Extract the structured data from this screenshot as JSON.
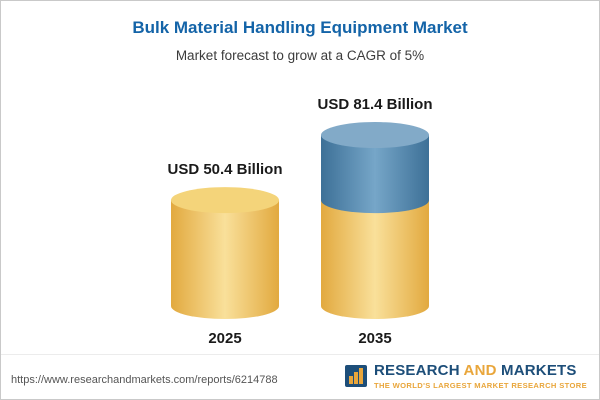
{
  "header": {
    "title": "Bulk Material Handling Equipment Market",
    "subtitle": "Market forecast to grow at a CAGR of 5%"
  },
  "chart_data": {
    "type": "bar",
    "variant": "3d-cylinder",
    "title": "Bulk Material Handling Equipment Market",
    "subtitle": "Market forecast to grow at a CAGR of 5%",
    "cagr": "5%",
    "unit": "USD Billion",
    "categories": [
      "2025",
      "2035"
    ],
    "values": [
      50.4,
      81.4
    ],
    "value_labels": [
      "USD 50.4 Billion",
      "USD 81.4 Billion"
    ],
    "legend": "none",
    "grid": "off",
    "baseline": "aligned-bottom",
    "bars": [
      {
        "category": "2025",
        "label": "USD 50.4 Billion",
        "segments": [
          {
            "value": 50.4,
            "color": "gold"
          }
        ]
      },
      {
        "category": "2035",
        "label": "USD 81.4 Billion",
        "segments": [
          {
            "value": 50.4,
            "color": "gold"
          },
          {
            "value": 31.0,
            "color": "blue"
          }
        ]
      }
    ],
    "colors": {
      "gold_edge": "#e2a93f",
      "gold_mid": "#f9e09a",
      "gold_top": "#f4d47a",
      "blue_edge": "#3d7097",
      "blue_mid": "#76a6c8",
      "blue_top": "#82aac8"
    }
  },
  "footer": {
    "url": "https://www.researchandmarkets.com/reports/6214788",
    "logo": {
      "research": "RESEARCH",
      "and": "AND",
      "markets": "MARKETS",
      "tagline": "THE WORLD'S LARGEST MARKET RESEARCH STORE"
    }
  }
}
